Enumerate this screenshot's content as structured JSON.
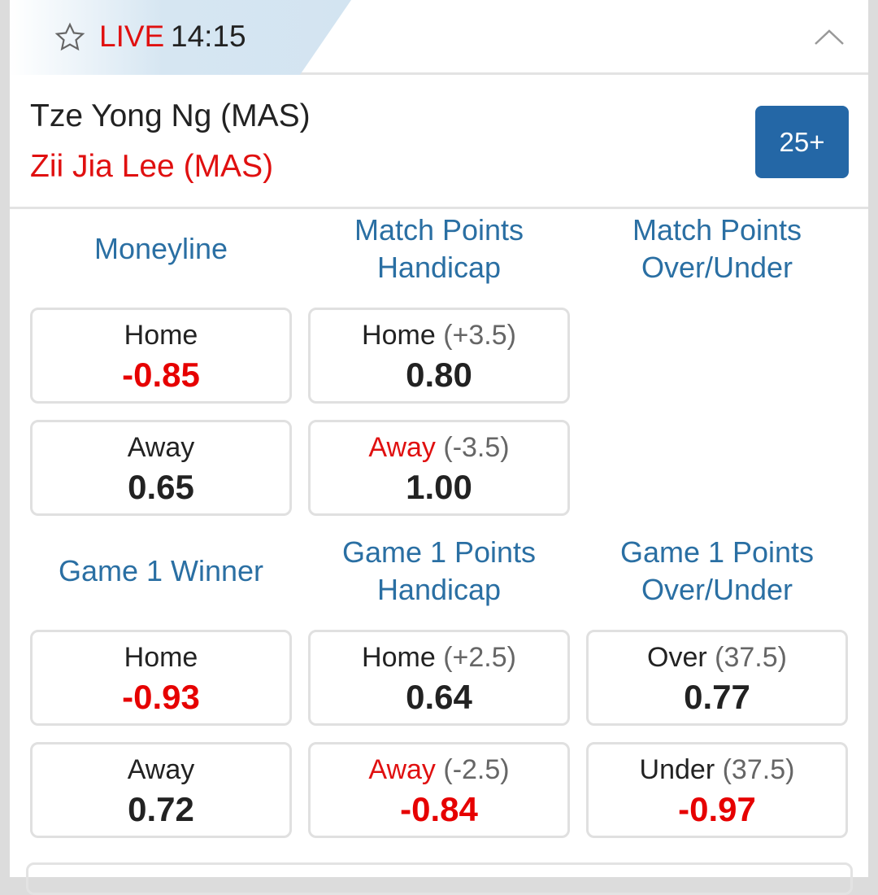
{
  "header": {
    "live_label": "LIVE",
    "time": "14:15",
    "icons": [
      "star-icon",
      "chevron-up-icon"
    ]
  },
  "match": {
    "home": "Tze Yong Ng (MAS)",
    "away": "Zii Jia Lee (MAS)",
    "more_markets": "25+"
  },
  "colors": {
    "accent": "#2a6fa3",
    "live": "#e01010",
    "negative": "#e60000",
    "badge": "#2467a6"
  },
  "markets": [
    {
      "title": "Moneyline",
      "options": [
        {
          "label": "Home",
          "hcp": "",
          "odds": "-0.85"
        },
        {
          "label": "Away",
          "hcp": "",
          "odds": "0.65"
        }
      ]
    },
    {
      "title": "Match Points Handicap",
      "options": [
        {
          "label": "Home",
          "hcp": "(+3.5)",
          "odds": "0.80"
        },
        {
          "label": "Away",
          "hcp": "(-3.5)",
          "odds": "1.00"
        }
      ]
    },
    {
      "title": "Match Points Over/Under",
      "options": []
    },
    {
      "title": "Game 1 Winner",
      "options": [
        {
          "label": "Home",
          "hcp": "",
          "odds": "-0.93"
        },
        {
          "label": "Away",
          "hcp": "",
          "odds": "0.72"
        }
      ]
    },
    {
      "title": "Game 1 Points Handicap",
      "options": [
        {
          "label": "Home",
          "hcp": "(+2.5)",
          "odds": "0.64"
        },
        {
          "label": "Away",
          "hcp": "(-2.5)",
          "odds": "-0.84"
        }
      ]
    },
    {
      "title": "Game 1 Points Over/Under",
      "options": [
        {
          "label": "Over",
          "hcp": "(37.5)",
          "odds": "0.77"
        },
        {
          "label": "Under",
          "hcp": "(37.5)",
          "odds": "-0.97"
        }
      ]
    }
  ]
}
